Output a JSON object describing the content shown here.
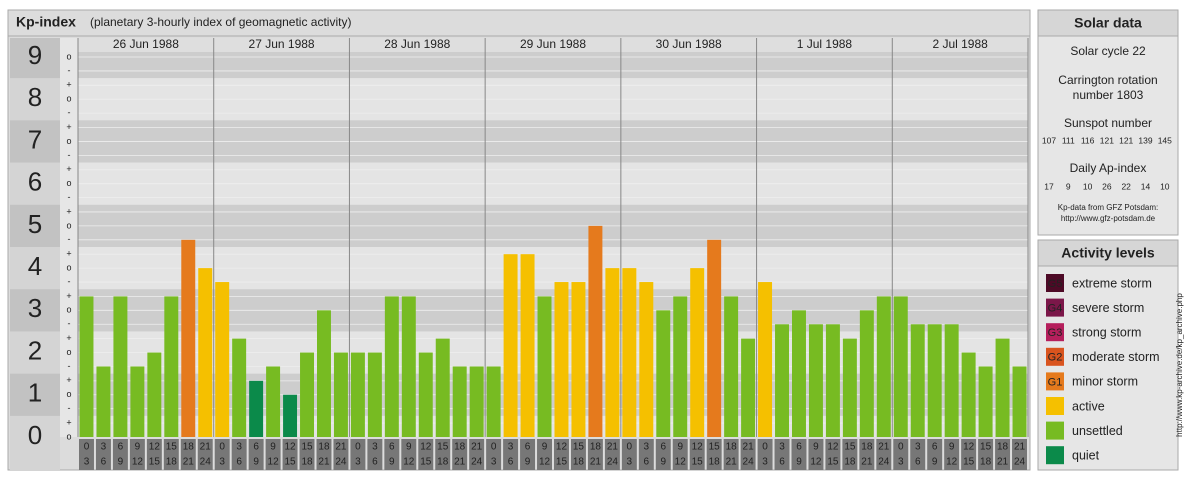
{
  "chart_data": {
    "type": "bar",
    "title": "Kp-index",
    "subtitle": "(planetary 3-hourly index of geomagnetic activity)",
    "days": [
      "26 Jun 1988",
      "27 Jun 1988",
      "28 Jun 1988",
      "29 Jun 1988",
      "30 Jun 1988",
      "1 Jul 1988",
      "2 Jul 1988"
    ],
    "hours": [
      [
        "0",
        "3"
      ],
      [
        "3",
        "6"
      ],
      [
        "6",
        "9"
      ],
      [
        "9",
        "12"
      ],
      [
        "12",
        "15"
      ],
      [
        "15",
        "18"
      ],
      [
        "18",
        "21"
      ],
      [
        "21",
        "24"
      ]
    ],
    "values": [
      3.33,
      1.67,
      3.33,
      1.67,
      2,
      3.33,
      4.67,
      4,
      3.67,
      2.33,
      1.33,
      1.67,
      1,
      2,
      3,
      2,
      2,
      2,
      3.33,
      3.33,
      2,
      2.33,
      1.67,
      1.67,
      1.67,
      4.33,
      4.33,
      3.33,
      3.67,
      3.67,
      5,
      4,
      4,
      3.67,
      3,
      3.33,
      4,
      4.67,
      3.33,
      2.33,
      3.67,
      2.67,
      3,
      2.67,
      2.67,
      2.33,
      3,
      3.33,
      3.33,
      2.67,
      2.67,
      2.67,
      2,
      1.67,
      2.33,
      1.67
    ],
    "colors": [
      "#77bb22",
      "#77bb22",
      "#77bb22",
      "#77bb22",
      "#77bb22",
      "#77bb22",
      "#e57a1d",
      "#f5c000",
      "#f5c000",
      "#77bb22",
      "#0b8a4a",
      "#77bb22",
      "#0b8a4a",
      "#77bb22",
      "#77bb22",
      "#77bb22",
      "#77bb22",
      "#77bb22",
      "#77bb22",
      "#77bb22",
      "#77bb22",
      "#77bb22",
      "#77bb22",
      "#77bb22",
      "#77bb22",
      "#f5c000",
      "#f5c000",
      "#77bb22",
      "#f5c000",
      "#f5c000",
      "#e57a1d",
      "#f5c000",
      "#f5c000",
      "#f5c000",
      "#77bb22",
      "#77bb22",
      "#f5c000",
      "#e57a1d",
      "#77bb22",
      "#77bb22",
      "#f5c000",
      "#77bb22",
      "#77bb22",
      "#77bb22",
      "#77bb22",
      "#77bb22",
      "#77bb22",
      "#77bb22",
      "#77bb22",
      "#77bb22",
      "#77bb22",
      "#77bb22",
      "#77bb22",
      "#77bb22",
      "#77bb22",
      "#77bb22"
    ],
    "ylim": [
      0,
      9
    ],
    "yticks": [
      0,
      1,
      2,
      3,
      4,
      5,
      6,
      7,
      8,
      9
    ],
    "minor_yticks": [
      {
        "value": 0,
        "label": "o"
      },
      {
        "value": 0.33,
        "label": "+"
      },
      {
        "value": 0.67,
        "label": "-"
      },
      {
        "value": 1,
        "label": "o"
      },
      {
        "value": 1.33,
        "label": "+"
      },
      {
        "value": 1.67,
        "label": "-"
      },
      {
        "value": 2,
        "label": "o"
      },
      {
        "value": 2.33,
        "label": "+"
      },
      {
        "value": 2.67,
        "label": "-"
      },
      {
        "value": 3,
        "label": "o"
      },
      {
        "value": 3.33,
        "label": "+"
      },
      {
        "value": 3.67,
        "label": "-"
      },
      {
        "value": 4,
        "label": "o"
      },
      {
        "value": 4.33,
        "label": "+"
      },
      {
        "value": 4.67,
        "label": "-"
      },
      {
        "value": 5,
        "label": "o"
      },
      {
        "value": 5.33,
        "label": "+"
      },
      {
        "value": 5.67,
        "label": "-"
      },
      {
        "value": 6,
        "label": "o"
      },
      {
        "value": 6.33,
        "label": "+"
      },
      {
        "value": 6.67,
        "label": "-"
      },
      {
        "value": 7,
        "label": "o"
      },
      {
        "value": 7.33,
        "label": "+"
      },
      {
        "value": 7.67,
        "label": "-"
      },
      {
        "value": 8,
        "label": "o"
      },
      {
        "value": 8.33,
        "label": "+"
      },
      {
        "value": 8.67,
        "label": "-"
      },
      {
        "value": 9,
        "label": "o"
      }
    ],
    "grid": true
  },
  "solar_data": {
    "title": "Solar data",
    "cycle": "Solar cycle 22",
    "carrington": [
      "Carrington rotation",
      "number 1803"
    ],
    "sunspot_title": "Sunspot number",
    "sunspot_numbers": [
      107,
      111,
      116,
      121,
      121,
      139,
      145
    ],
    "ap_title": "Daily Ap-index",
    "ap_index": [
      17,
      9,
      10,
      26,
      22,
      14,
      10
    ],
    "source": [
      "Kp-data from GFZ Potsdam:",
      "http://www.gfz-potsdam.de"
    ]
  },
  "activity_levels": {
    "title": "Activity levels",
    "levels": [
      {
        "badge": "G5",
        "name": "extreme storm",
        "color": "#4d0a26"
      },
      {
        "badge": "G4",
        "name": "severe storm",
        "color": "#7b1749"
      },
      {
        "badge": "G3",
        "name": "strong storm",
        "color": "#b51f5c"
      },
      {
        "badge": "G2",
        "name": "moderate storm",
        "color": "#d9541e"
      },
      {
        "badge": "G1",
        "name": "minor storm",
        "color": "#e57a1d"
      },
      {
        "name": "active",
        "color": "#f5c000"
      },
      {
        "name": "unsettled",
        "color": "#77bb22"
      },
      {
        "name": "quiet",
        "color": "#0b8a4a"
      }
    ]
  },
  "side_url": "http://www.kp-archive.de/kp_archive.php"
}
